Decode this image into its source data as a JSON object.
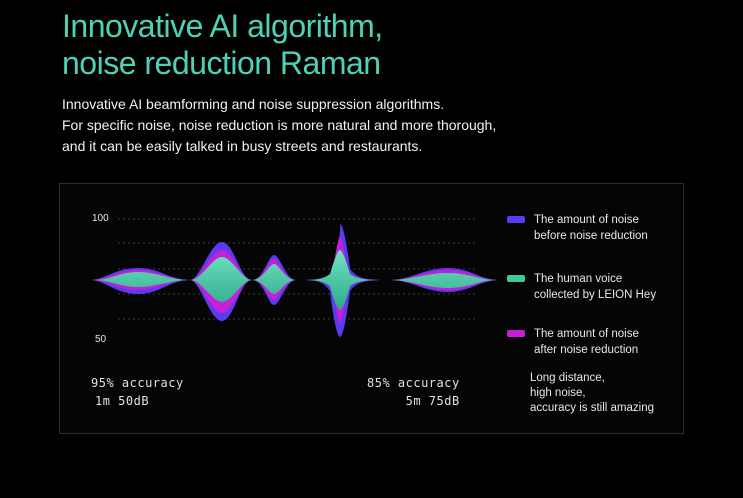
{
  "title": {
    "line1": "Innovative AI algorithm,",
    "line2": "noise reduction Raman"
  },
  "description": {
    "line1": "Innovative AI beamforming and noise suppression algorithms.",
    "line2": "For specific noise, noise reduction is more natural and more thorough,",
    "line3": "and it can be easily talked in busy streets and restaurants."
  },
  "chart": {
    "y_ticks": [
      "100",
      "50"
    ],
    "legend": [
      {
        "line1": "The amount of noise",
        "line2": "before noise reduction",
        "color": "#5b3bf0"
      },
      {
        "line1": "The human voice",
        "line2": "collected by LEION Hey",
        "color": "#3fc8a0"
      },
      {
        "line1": "The amount of noise",
        "line2": "after noise reduction",
        "color": "#c51fd8"
      }
    ],
    "stats": {
      "left": {
        "line1": "95% accuracy",
        "line2": "1m 50dB"
      },
      "right": {
        "line1": "85% accuracy",
        "line2": "5m 75dB"
      }
    },
    "note": {
      "line1": "Long distance,",
      "line2": "high noise,",
      "line3": "accuracy is still amazing"
    }
  }
}
